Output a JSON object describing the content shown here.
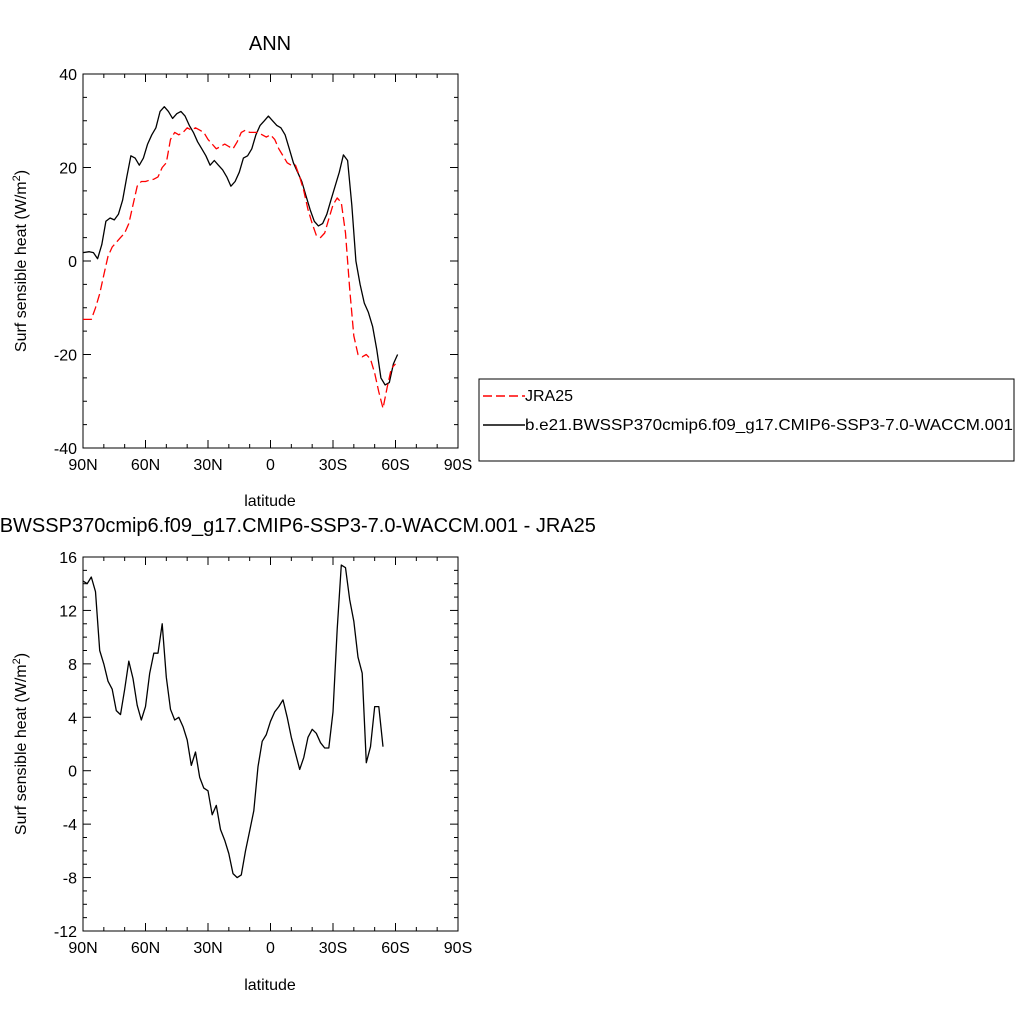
{
  "chart_data": [
    {
      "type": "line",
      "title": "ANN",
      "xlabel": "latitude",
      "ylabel": "Surf sensible heat (W/m",
      "ylabel_sup": "2",
      "ylabel_end": ")",
      "xlim": [
        90,
        -90
      ],
      "ylim": [
        -40,
        40
      ],
      "x_ticks": [
        {
          "value": 90,
          "label": "90N"
        },
        {
          "value": 60,
          "label": "60N"
        },
        {
          "value": 30,
          "label": "30N"
        },
        {
          "value": 0,
          "label": "0"
        },
        {
          "value": -30,
          "label": "30S"
        },
        {
          "value": -60,
          "label": "60S"
        },
        {
          "value": -90,
          "label": "90S"
        }
      ],
      "y_ticks": [
        {
          "value": 40,
          "label": "40"
        },
        {
          "value": 20,
          "label": "20"
        },
        {
          "value": 0,
          "label": "0"
        },
        {
          "value": -20,
          "label": "-20"
        },
        {
          "value": -40,
          "label": "-40"
        }
      ],
      "legend": {
        "placement": "right",
        "entries": [
          {
            "label": "JRA25",
            "color": "#ff0000",
            "dash": "dashed"
          },
          {
            "label": "b.e21.BWSSP370cmip6.f09_g17.CMIP6-SSP3-7.0-WACCM.001",
            "color": "#000000",
            "dash": "solid"
          }
        ]
      },
      "series": [
        {
          "name": "b.e21.BWSSP370cmip6.f09_g17.CMIP6-SSP3-7.0-WACCM.001",
          "color": "#000000",
          "dash": "solid",
          "points": [
            [
              90,
              1.8
            ],
            [
              87,
              2.0
            ],
            [
              85,
              1.8
            ],
            [
              83,
              0.5
            ],
            [
              81,
              3.5
            ],
            [
              79,
              8.5
            ],
            [
              77,
              9.2
            ],
            [
              75,
              8.8
            ],
            [
              73,
              10
            ],
            [
              71,
              13
            ],
            [
              69,
              18
            ],
            [
              67,
              22.5
            ],
            [
              65,
              22
            ],
            [
              63,
              20.5
            ],
            [
              61,
              22
            ],
            [
              59,
              25
            ],
            [
              57,
              27
            ],
            [
              55,
              28.5
            ],
            [
              53,
              32
            ],
            [
              51,
              33
            ],
            [
              49,
              32
            ],
            [
              47,
              30.5
            ],
            [
              45,
              31.5
            ],
            [
              43,
              32
            ],
            [
              41,
              31
            ],
            [
              39,
              29
            ],
            [
              37,
              27.5
            ],
            [
              35,
              25.5
            ],
            [
              33,
              24
            ],
            [
              31,
              22.5
            ],
            [
              29,
              20.5
            ],
            [
              27,
              21.5
            ],
            [
              25,
              20.5
            ],
            [
              23,
              19.5
            ],
            [
              21,
              18
            ],
            [
              19,
              16
            ],
            [
              17,
              17
            ],
            [
              15,
              19
            ],
            [
              13,
              22
            ],
            [
              11,
              22.5
            ],
            [
              9,
              24
            ],
            [
              7,
              27
            ],
            [
              5,
              29
            ],
            [
              3,
              30
            ],
            [
              1,
              31
            ],
            [
              -1,
              30
            ],
            [
              -3,
              29
            ],
            [
              -5,
              28.5
            ],
            [
              -7,
              27
            ],
            [
              -9,
              24
            ],
            [
              -11,
              21
            ],
            [
              -13,
              19
            ],
            [
              -15,
              17
            ],
            [
              -17,
              14
            ],
            [
              -19,
              11
            ],
            [
              -21,
              8.5
            ],
            [
              -23,
              7.5
            ],
            [
              -25,
              8
            ],
            [
              -27,
              10
            ],
            [
              -29,
              13
            ],
            [
              -31,
              16
            ],
            [
              -33,
              19
            ],
            [
              -35,
              22.7
            ],
            [
              -37,
              21.5
            ],
            [
              -39,
              12
            ],
            [
              -41,
              0
            ],
            [
              -43,
              -5
            ],
            [
              -45,
              -9
            ],
            [
              -47,
              -11
            ],
            [
              -49,
              -14
            ],
            [
              -51,
              -19
            ],
            [
              -53,
              -25
            ],
            [
              -55,
              -26.5
            ],
            [
              -57,
              -26
            ],
            [
              -59,
              -22
            ],
            [
              -61,
              -20
            ]
          ]
        },
        {
          "name": "JRA25",
          "color": "#ff0000",
          "dash": "dashed",
          "points": [
            [
              90,
              -12.5
            ],
            [
              88,
              -12.5
            ],
            [
              86,
              -12.5
            ],
            [
              84,
              -10
            ],
            [
              82,
              -7
            ],
            [
              80,
              -3
            ],
            [
              78,
              1
            ],
            [
              76,
              3
            ],
            [
              74,
              4
            ],
            [
              72,
              5
            ],
            [
              70,
              6
            ],
            [
              68,
              8
            ],
            [
              66,
              12
            ],
            [
              64,
              16
            ],
            [
              62,
              17
            ],
            [
              60,
              17
            ],
            [
              58,
              17.3
            ],
            [
              56,
              17.5
            ],
            [
              54,
              18
            ],
            [
              52,
              20
            ],
            [
              50,
              21
            ],
            [
              48,
              26
            ],
            [
              46,
              27.5
            ],
            [
              44,
              27
            ],
            [
              42,
              27.5
            ],
            [
              40,
              28.5
            ],
            [
              38,
              28
            ],
            [
              36,
              28.5
            ],
            [
              34,
              28
            ],
            [
              32,
              27.5
            ],
            [
              30,
              26
            ],
            [
              28,
              25
            ],
            [
              26,
              24
            ],
            [
              24,
              24.5
            ],
            [
              22,
              25
            ],
            [
              20,
              24.5
            ],
            [
              18,
              24
            ],
            [
              16,
              25.5
            ],
            [
              14,
              27.5
            ],
            [
              12,
              28
            ],
            [
              10,
              27.5
            ],
            [
              8,
              27.5
            ],
            [
              6,
              27.5
            ],
            [
              4,
              27
            ],
            [
              2,
              26.5
            ],
            [
              0,
              27
            ],
            [
              -2,
              26
            ],
            [
              -4,
              24
            ],
            [
              -6,
              22.5
            ],
            [
              -8,
              21
            ],
            [
              -10,
              20.5
            ],
            [
              -12,
              20.5
            ],
            [
              -14,
              18
            ],
            [
              -16,
              15
            ],
            [
              -18,
              11
            ],
            [
              -20,
              8
            ],
            [
              -22,
              5.5
            ],
            [
              -24,
              5
            ],
            [
              -26,
              6
            ],
            [
              -28,
              9
            ],
            [
              -30,
              12
            ],
            [
              -32,
              13.5
            ],
            [
              -34,
              12.5
            ],
            [
              -36,
              6
            ],
            [
              -38,
              -6
            ],
            [
              -40,
              -16
            ],
            [
              -42,
              -20
            ],
            [
              -44,
              -20.5
            ],
            [
              -46,
              -20
            ],
            [
              -48,
              -21
            ],
            [
              -50,
              -24
            ],
            [
              -52,
              -28
            ],
            [
              -54,
              -31.5
            ],
            [
              -56,
              -27
            ],
            [
              -58,
              -23
            ],
            [
              -60,
              -22
            ]
          ]
        }
      ]
    },
    {
      "type": "line",
      "title": "b.e21.BWSSP370cmip6.f09_g17.CMIP6-SSP3-7.0-WACCM.001 - JRA25",
      "xlabel": "latitude",
      "ylabel": "Surf sensible heat (W/m",
      "ylabel_sup": "2",
      "ylabel_end": ")",
      "xlim": [
        90,
        -90
      ],
      "ylim": [
        -12,
        16
      ],
      "x_ticks": [
        {
          "value": 90,
          "label": "90N"
        },
        {
          "value": 60,
          "label": "60N"
        },
        {
          "value": 30,
          "label": "30N"
        },
        {
          "value": 0,
          "label": "0"
        },
        {
          "value": -30,
          "label": "30S"
        },
        {
          "value": -60,
          "label": "60S"
        },
        {
          "value": -90,
          "label": "90S"
        }
      ],
      "y_ticks": [
        {
          "value": 16,
          "label": "16"
        },
        {
          "value": 12,
          "label": "12"
        },
        {
          "value": 8,
          "label": "8"
        },
        {
          "value": 4,
          "label": "4"
        },
        {
          "value": 0,
          "label": "0"
        },
        {
          "value": -4,
          "label": "-4"
        },
        {
          "value": -8,
          "label": "-8"
        },
        {
          "value": -12,
          "label": "-12"
        }
      ],
      "series": [
        {
          "color": "#000000",
          "dash": "solid",
          "points": [
            [
              90,
              14.2
            ],
            [
              88,
              14.0
            ],
            [
              86,
              14.5
            ],
            [
              84,
              13.4
            ],
            [
              82,
              9.0
            ],
            [
              80,
              8.0
            ],
            [
              78,
              6.7
            ],
            [
              76,
              6.1
            ],
            [
              74,
              4.5
            ],
            [
              72,
              4.2
            ],
            [
              70,
              6.1
            ],
            [
              68,
              8.2
            ],
            [
              66,
              6.9
            ],
            [
              64,
              4.9
            ],
            [
              62,
              3.8
            ],
            [
              60,
              4.8
            ],
            [
              58,
              7.3
            ],
            [
              56,
              8.8
            ],
            [
              54,
              8.8
            ],
            [
              52,
              11.0
            ],
            [
              50,
              7.0
            ],
            [
              48,
              4.6
            ],
            [
              46,
              3.8
            ],
            [
              44,
              4.0
            ],
            [
              42,
              3.3
            ],
            [
              40,
              2.3
            ],
            [
              38,
              0.4
            ],
            [
              36,
              1.4
            ],
            [
              34,
              -0.5
            ],
            [
              32,
              -1.3
            ],
            [
              30,
              -1.5
            ],
            [
              28,
              -3.3
            ],
            [
              26,
              -2.6
            ],
            [
              24,
              -4.4
            ],
            [
              22,
              -5.2
            ],
            [
              20,
              -6.2
            ],
            [
              18,
              -7.7
            ],
            [
              16,
              -8.0
            ],
            [
              14,
              -7.8
            ],
            [
              12,
              -6.0
            ],
            [
              10,
              -4.5
            ],
            [
              8,
              -3.0
            ],
            [
              6,
              0.3
            ],
            [
              4,
              2.2
            ],
            [
              2,
              2.7
            ],
            [
              0,
              3.7
            ],
            [
              -2,
              4.4
            ],
            [
              -4,
              4.8
            ],
            [
              -6,
              5.3
            ],
            [
              -8,
              4.0
            ],
            [
              -10,
              2.5
            ],
            [
              -12,
              1.3
            ],
            [
              -14,
              0.1
            ],
            [
              -16,
              1.0
            ],
            [
              -18,
              2.5
            ],
            [
              -20,
              3.1
            ],
            [
              -22,
              2.8
            ],
            [
              -24,
              2.1
            ],
            [
              -26,
              1.7
            ],
            [
              -28,
              1.7
            ],
            [
              -30,
              4.4
            ],
            [
              -32,
              10.6
            ],
            [
              -34,
              15.4
            ],
            [
              -36,
              15.2
            ],
            [
              -38,
              12.8
            ],
            [
              -40,
              11.2
            ],
            [
              -42,
              8.5
            ],
            [
              -44,
              7.3
            ],
            [
              -46,
              0.6
            ],
            [
              -48,
              1.8
            ],
            [
              -50,
              4.8
            ],
            [
              -52,
              4.8
            ],
            [
              -54,
              1.8
            ]
          ]
        }
      ]
    }
  ]
}
